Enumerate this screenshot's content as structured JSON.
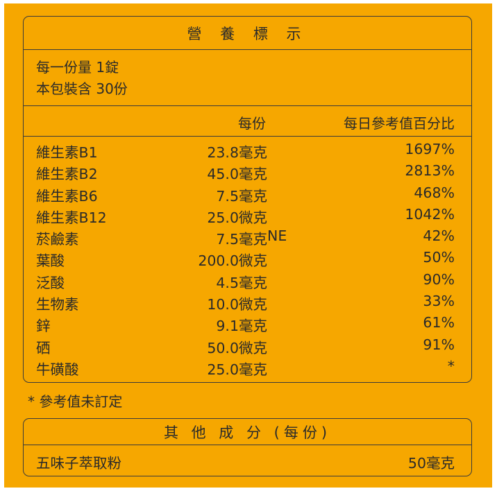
{
  "title": "營 養 標 示",
  "serving_size": "每一份量 1錠",
  "servings_per_package": "本包裝含 30份",
  "columns": {
    "per_serving": "每份",
    "daily_value": "每日參考值百分比"
  },
  "nutrients": [
    {
      "name": "維生素B1",
      "amount": "23.8毫克",
      "suffix": "",
      "dv": "1697%"
    },
    {
      "name": "維生素B2",
      "amount": "45.0毫克",
      "suffix": "",
      "dv": "2813%"
    },
    {
      "name": "維生素B6",
      "amount": "7.5毫克",
      "suffix": "",
      "dv": "468%"
    },
    {
      "name": "維生素B12",
      "amount": "25.0微克",
      "suffix": "",
      "dv": "1042%"
    },
    {
      "name": "菸鹼素",
      "amount": "7.5毫克",
      "suffix": "NE",
      "dv": "42%"
    },
    {
      "name": "葉酸",
      "amount": "200.0微克",
      "suffix": "",
      "dv": "50%"
    },
    {
      "name": "泛酸",
      "amount": "4.5毫克",
      "suffix": "",
      "dv": "90%"
    },
    {
      "name": "生物素",
      "amount": "10.0微克",
      "suffix": "",
      "dv": "33%"
    },
    {
      "name": "鋅",
      "amount": "9.1毫克",
      "suffix": "",
      "dv": "61%"
    },
    {
      "name": "硒",
      "amount": "50.0微克",
      "suffix": "",
      "dv": "91%"
    },
    {
      "name": "牛磺酸",
      "amount": "25.0毫克",
      "suffix": "",
      "dv": "*"
    }
  ],
  "footnote": "* 參考值未訂定",
  "other": {
    "title": "其 他 成 分 (每份)",
    "items": [
      {
        "name": "五味子萃取粉",
        "amount": "50毫克"
      }
    ]
  },
  "colors": {
    "background": "#f6a700",
    "border": "#3a3a3a",
    "text": "#2a2a2a"
  }
}
